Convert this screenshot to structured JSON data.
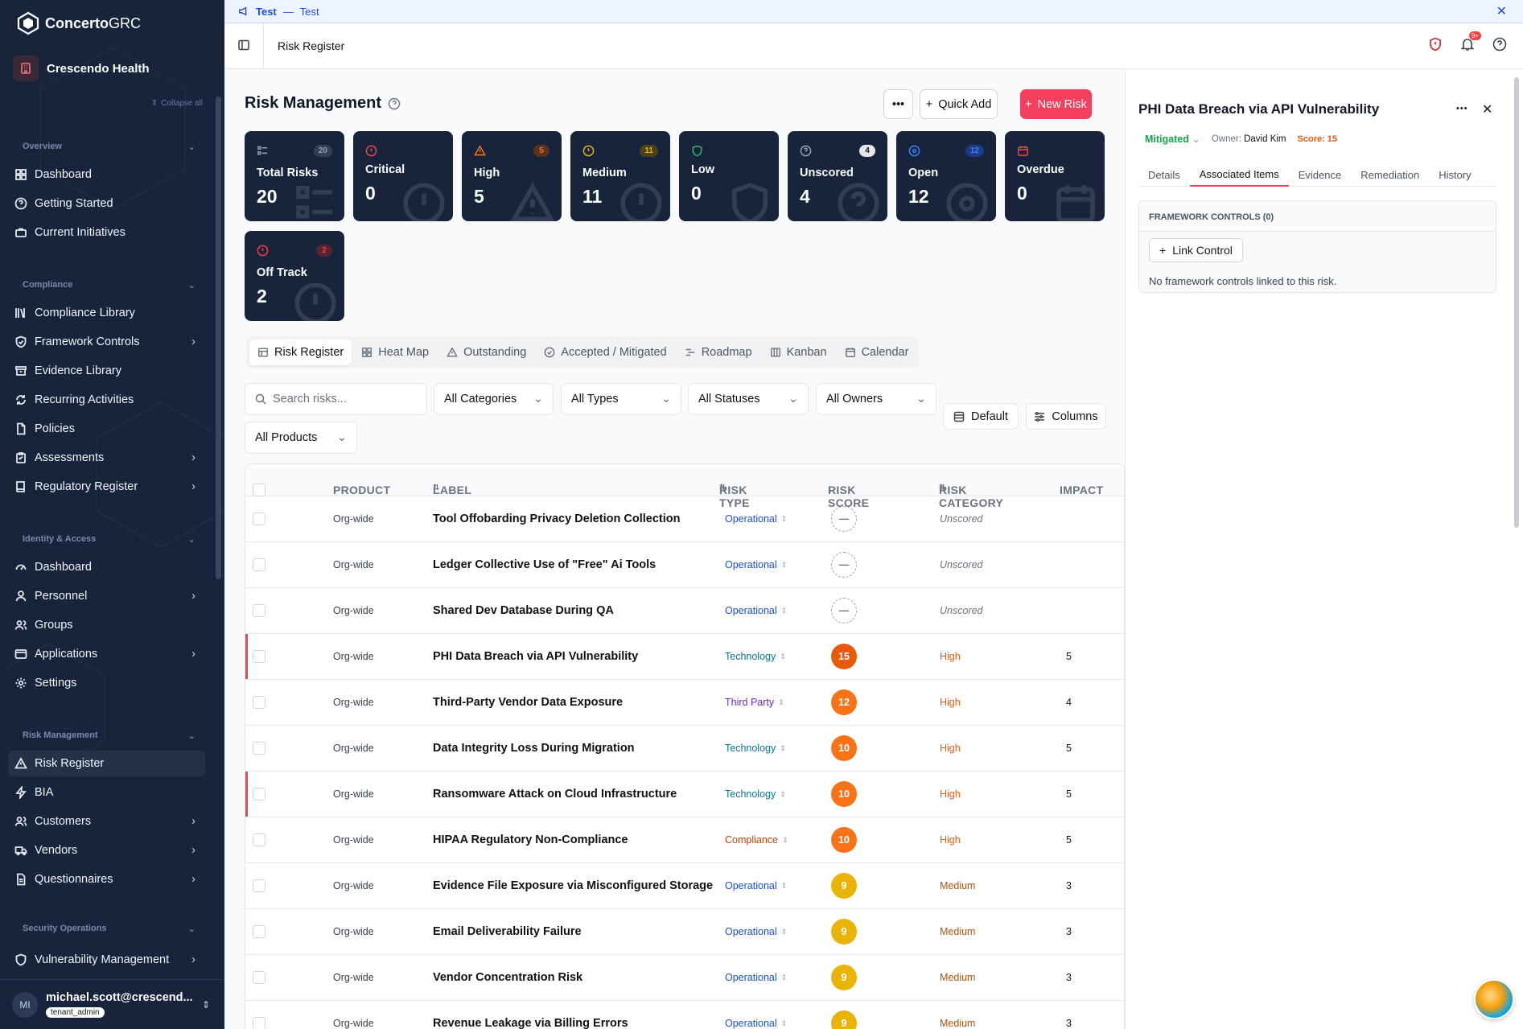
{
  "banner": {
    "title": "Test",
    "separator": "—",
    "message": "Test"
  },
  "brand": {
    "name_bold": "Concerto",
    "name_light": "GRC"
  },
  "org": {
    "name": "Crescendo Health"
  },
  "sidebar": {
    "collapse_label": "Collapse all",
    "sections": [
      {
        "label": "Overview",
        "items": [
          {
            "label": "Dashboard",
            "icon": "grid-icon"
          },
          {
            "label": "Getting Started",
            "icon": "help-circle-icon"
          },
          {
            "label": "Current Initiatives",
            "icon": "briefcase-icon"
          }
        ]
      },
      {
        "label": "Compliance",
        "items": [
          {
            "label": "Compliance Library",
            "icon": "library-icon"
          },
          {
            "label": "Framework Controls",
            "icon": "shield-check-icon",
            "chevron": true
          },
          {
            "label": "Evidence Library",
            "icon": "archive-icon"
          },
          {
            "label": "Recurring Activities",
            "icon": "refresh-icon"
          },
          {
            "label": "Policies",
            "icon": "file-icon"
          },
          {
            "label": "Assessments",
            "icon": "clipboard-icon",
            "chevron": true
          },
          {
            "label": "Regulatory Register",
            "icon": "book-icon",
            "chevron": true
          }
        ]
      },
      {
        "label": "Identity & Access",
        "items": [
          {
            "label": "Dashboard",
            "icon": "gauge-icon"
          },
          {
            "label": "Personnel",
            "icon": "user-icon",
            "chevron": true
          },
          {
            "label": "Groups",
            "icon": "users-icon"
          },
          {
            "label": "Applications",
            "icon": "app-window-icon",
            "chevron": true
          },
          {
            "label": "Settings",
            "icon": "gear-icon"
          }
        ]
      },
      {
        "label": "Risk Management",
        "items": [
          {
            "label": "Risk Register",
            "icon": "warning-icon",
            "active": true
          },
          {
            "label": "BIA",
            "icon": "zap-icon"
          },
          {
            "label": "Customers",
            "icon": "users-icon",
            "chevron": true
          },
          {
            "label": "Vendors",
            "icon": "truck-icon",
            "chevron": true
          },
          {
            "label": "Questionnaires",
            "icon": "file-text-icon",
            "chevron": true
          }
        ]
      },
      {
        "label": "Security Operations",
        "items": [
          {
            "label": "Vulnerability Management",
            "icon": "shield-icon",
            "chevron": true
          }
        ]
      }
    ],
    "user": {
      "initials": "MI",
      "email": "michael.scott@crescend...",
      "role": "tenant_admin"
    }
  },
  "topbar": {
    "breadcrumb": "Risk Register",
    "notif_count": "9+"
  },
  "main": {
    "title": "Risk Management",
    "quick_add": "Quick Add",
    "new_risk": "New Risk",
    "cards": [
      {
        "label": "Total Risks",
        "value": "20",
        "badge": "20",
        "color": "#94a3b8",
        "badge_bg": "#334155",
        "icon": "list-icon"
      },
      {
        "label": "Critical",
        "value": "0",
        "badge": "",
        "color": "#ef4444",
        "icon": "alert-octagon-icon"
      },
      {
        "label": "High",
        "value": "5",
        "badge": "5",
        "color": "#f97316",
        "badge_bg": "#5a3320",
        "icon": "warning-icon"
      },
      {
        "label": "Medium",
        "value": "11",
        "badge": "11",
        "color": "#eab308",
        "badge_bg": "#4d4118",
        "icon": "alert-circle-icon"
      },
      {
        "label": "Low",
        "value": "0",
        "badge": "",
        "color": "#22c55e",
        "icon": "shield-icon"
      },
      {
        "label": "Unscored",
        "value": "4",
        "badge": "4",
        "color": "#94a3b8",
        "badge_bg": "#e5e7eb",
        "icon": "help-circle-icon"
      },
      {
        "label": "Open",
        "value": "12",
        "badge": "12",
        "color": "#3b82f6",
        "badge_bg": "#1e3a8a",
        "icon": "target-icon"
      },
      {
        "label": "Overdue",
        "value": "0",
        "badge": "",
        "color": "#ef4444",
        "icon": "calendar-clock-icon"
      },
      {
        "label": "Off Track",
        "value": "2",
        "badge": "2",
        "color": "#ef4444",
        "badge_bg": "#5b2230",
        "icon": "alert-circle-icon"
      }
    ],
    "tabs": [
      {
        "label": "Risk Register",
        "icon": "table-icon",
        "active": true
      },
      {
        "label": "Heat Map",
        "icon": "grid-icon"
      },
      {
        "label": "Outstanding",
        "icon": "warning-icon"
      },
      {
        "label": "Accepted / Mitigated",
        "icon": "check-circle-icon"
      },
      {
        "label": "Roadmap",
        "icon": "roadmap-icon"
      },
      {
        "label": "Kanban",
        "icon": "kanban-icon"
      },
      {
        "label": "Calendar",
        "icon": "calendar-icon"
      }
    ],
    "filters": {
      "search_placeholder": "Search risks...",
      "categories": "All Categories",
      "types": "All Types",
      "statuses": "All Statuses",
      "owners": "All Owners",
      "products": "All Products",
      "default_view": "Default",
      "columns": "Columns"
    },
    "table": {
      "headers": [
        "PRODUCT",
        "LABEL",
        "RISK TYPE",
        "RISK SCORE",
        "RISK CATEGORY",
        "IMPACT"
      ],
      "rows": [
        {
          "product": "Org-wide",
          "label": "Tool Offobarding Privacy Deletion Collection",
          "type": "Operational",
          "score": "",
          "category": "Unscored",
          "impact": "",
          "flag": false
        },
        {
          "product": "Org-wide",
          "label": "Ledger Collective Use of \"Free\" Ai Tools",
          "type": "Operational",
          "score": "",
          "category": "Unscored",
          "impact": "",
          "flag": false
        },
        {
          "product": "Org-wide",
          "label": "Shared Dev Database During QA",
          "type": "Operational",
          "score": "",
          "category": "Unscored",
          "impact": "",
          "flag": false
        },
        {
          "product": "Org-wide",
          "label": "PHI Data Breach via API Vulnerability",
          "type": "Technology",
          "score": "15",
          "category": "High",
          "impact": "5",
          "flag": true
        },
        {
          "product": "Org-wide",
          "label": "Third-Party Vendor Data Exposure",
          "type": "Third Party",
          "score": "12",
          "category": "High",
          "impact": "4",
          "flag": false
        },
        {
          "product": "Org-wide",
          "label": "Data Integrity Loss During Migration",
          "type": "Technology",
          "score": "10",
          "category": "High",
          "impact": "5",
          "flag": false
        },
        {
          "product": "Org-wide",
          "label": "Ransomware Attack on Cloud Infrastructure",
          "type": "Technology",
          "score": "10",
          "category": "High",
          "impact": "5",
          "flag": true
        },
        {
          "product": "Org-wide",
          "label": "HIPAA Regulatory Non-Compliance",
          "type": "Compliance",
          "score": "10",
          "category": "High",
          "impact": "5",
          "flag": false
        },
        {
          "product": "Org-wide",
          "label": "Evidence File Exposure via Misconfigured Storage",
          "type": "Operational",
          "score": "9",
          "category": "Medium",
          "impact": "3",
          "flag": false
        },
        {
          "product": "Org-wide",
          "label": "Email Deliverability Failure",
          "type": "Operational",
          "score": "9",
          "category": "Medium",
          "impact": "3",
          "flag": false
        },
        {
          "product": "Org-wide",
          "label": "Vendor Concentration Risk",
          "type": "Operational",
          "score": "9",
          "category": "Medium",
          "impact": "3",
          "flag": false
        },
        {
          "product": "Org-wide",
          "label": "Revenue Leakage via Billing Errors",
          "type": "Operational",
          "score": "9",
          "category": "Medium",
          "impact": "3",
          "flag": false
        }
      ]
    }
  },
  "colors": {
    "type": {
      "Operational": "#1d4ed8",
      "Technology": "#0e7490",
      "Third Party": "#6d28d9",
      "Compliance": "#c2410c"
    },
    "category": {
      "Unscored": "#6b7280",
      "High": "#ea580c",
      "Medium": "#b45309"
    },
    "score_high": "#f97316",
    "score_medium": "#eab308",
    "score_15": "#ea580c"
  },
  "panel": {
    "title": "PHI Data Breach via API Vulnerability",
    "status": "Mitigated",
    "owner_label": "Owner:",
    "owner": "David Kim",
    "score_label": "Score: 15",
    "tabs": [
      {
        "label": "Details"
      },
      {
        "label": "Associated Items",
        "active": true
      },
      {
        "label": "Evidence"
      },
      {
        "label": "Remediation"
      },
      {
        "label": "History"
      }
    ],
    "section_title": "FRAMEWORK CONTROLS (0)",
    "link_control": "Link Control",
    "empty_text": "No framework controls linked to this risk."
  }
}
